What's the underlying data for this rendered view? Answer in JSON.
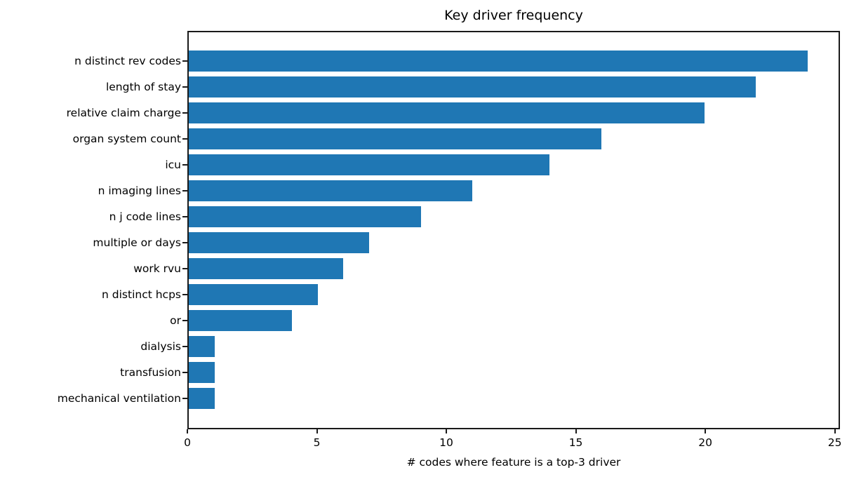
{
  "chart_data": {
    "type": "bar",
    "orientation": "horizontal",
    "title": "Key driver frequency",
    "xlabel": "# codes where feature is a top-3 driver",
    "ylabel": "",
    "categories": [
      "n distinct rev codes",
      "length of stay",
      "relative claim charge",
      "organ system count",
      "icu",
      "n imaging lines",
      "n j code lines",
      "multiple or days",
      "work rvu",
      "n distinct hcps",
      "or",
      "dialysis",
      "transfusion",
      "mechanical ventilation"
    ],
    "values": [
      24,
      22,
      20,
      16,
      14,
      11,
      9,
      7,
      6,
      5,
      4,
      1,
      1,
      1
    ],
    "xticks": [
      0,
      5,
      10,
      15,
      20,
      25
    ],
    "xlim": [
      0,
      25.2
    ],
    "grid": false,
    "legend": "none",
    "bar_color": "#1f77b4",
    "axis_color": "#1a1a1a"
  }
}
